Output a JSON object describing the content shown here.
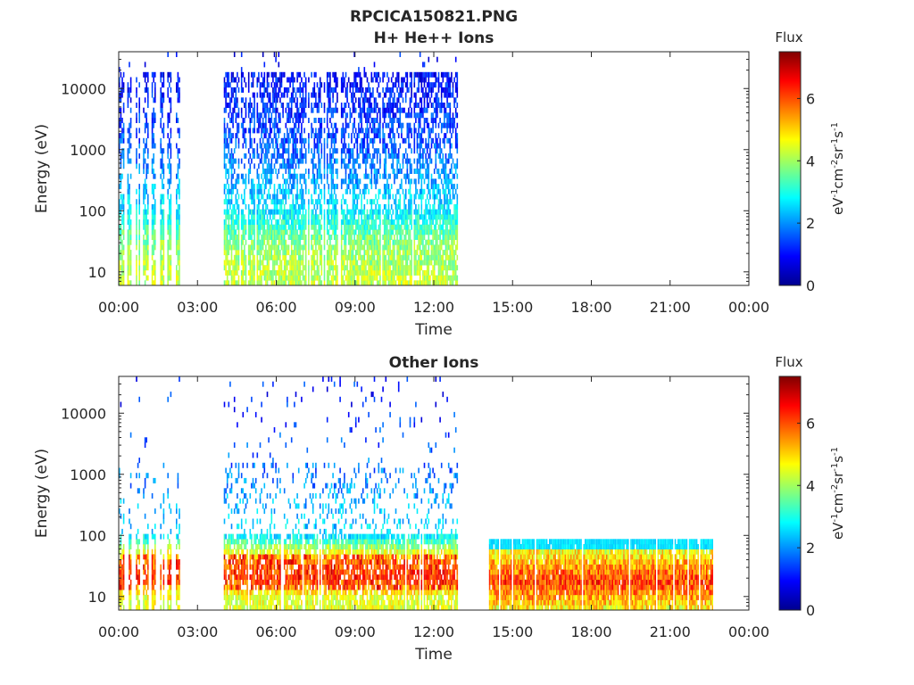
{
  "figure": {
    "title_line1": "RPCICA150821.PNG",
    "title_line2": "H+ He++ Ions"
  },
  "colormap": "jet",
  "chart_data": [
    {
      "type": "heatmap",
      "title": "H+ He++ Ions",
      "xlabel": "Time",
      "ylabel": "Energy (eV)",
      "x_ticks": [
        "00:00",
        "03:00",
        "06:00",
        "09:00",
        "12:00",
        "15:00",
        "18:00",
        "21:00",
        "00:00"
      ],
      "x_range_hours": [
        0,
        24
      ],
      "y_scale": "log",
      "y_ticks": [
        10,
        100,
        1000,
        10000
      ],
      "y_range": [
        6,
        40000
      ],
      "colorbar": {
        "label": "Flux",
        "unit": "eV-1cm-2sr-1s-1",
        "ticks": [
          0,
          2,
          4,
          6
        ],
        "range": [
          0,
          7.5
        ]
      },
      "data_intervals_hours": [
        [
          0.0,
          2.5
        ],
        [
          4.0,
          12.9
        ]
      ],
      "spectra": [
        {
          "energy_eV": 10,
          "flux": 4.2
        },
        {
          "energy_eV": 30,
          "flux": 3.8
        },
        {
          "energy_eV": 100,
          "flux": 2.7
        },
        {
          "energy_eV": 1000,
          "flux": 1.6
        },
        {
          "energy_eV": 5000,
          "flux": 1.2
        },
        {
          "energy_eV": 15000,
          "flux": 1.0
        }
      ]
    },
    {
      "type": "heatmap",
      "title": "Other Ions",
      "xlabel": "Time",
      "ylabel": "Energy (eV)",
      "x_ticks": [
        "00:00",
        "03:00",
        "06:00",
        "09:00",
        "12:00",
        "15:00",
        "18:00",
        "21:00",
        "00:00"
      ],
      "x_range_hours": [
        0,
        24
      ],
      "y_scale": "log",
      "y_ticks": [
        10,
        100,
        1000,
        10000
      ],
      "y_range": [
        6,
        40000
      ],
      "colorbar": {
        "label": "Flux",
        "unit": "eV-1cm-2sr-1s-1",
        "ticks": [
          0,
          2,
          4,
          6
        ],
        "range": [
          0,
          7.5
        ]
      },
      "data_intervals_hours": [
        [
          0.0,
          2.5
        ],
        [
          4.0,
          12.9
        ],
        [
          14.1,
          22.6
        ]
      ],
      "spectra": [
        {
          "energy_eV": 10,
          "flux": 4.5
        },
        {
          "energy_eV": 20,
          "flux": 6.2
        },
        {
          "energy_eV": 40,
          "flux": 5.5
        },
        {
          "energy_eV": 100,
          "flux": 2.6
        },
        {
          "energy_eV": 1000,
          "flux": 1.8
        },
        {
          "energy_eV": 10000,
          "flux": 1.2
        }
      ],
      "late_interval": {
        "energy_range_eV": [
          6,
          80
        ],
        "flux_peak": 7.0
      }
    }
  ]
}
